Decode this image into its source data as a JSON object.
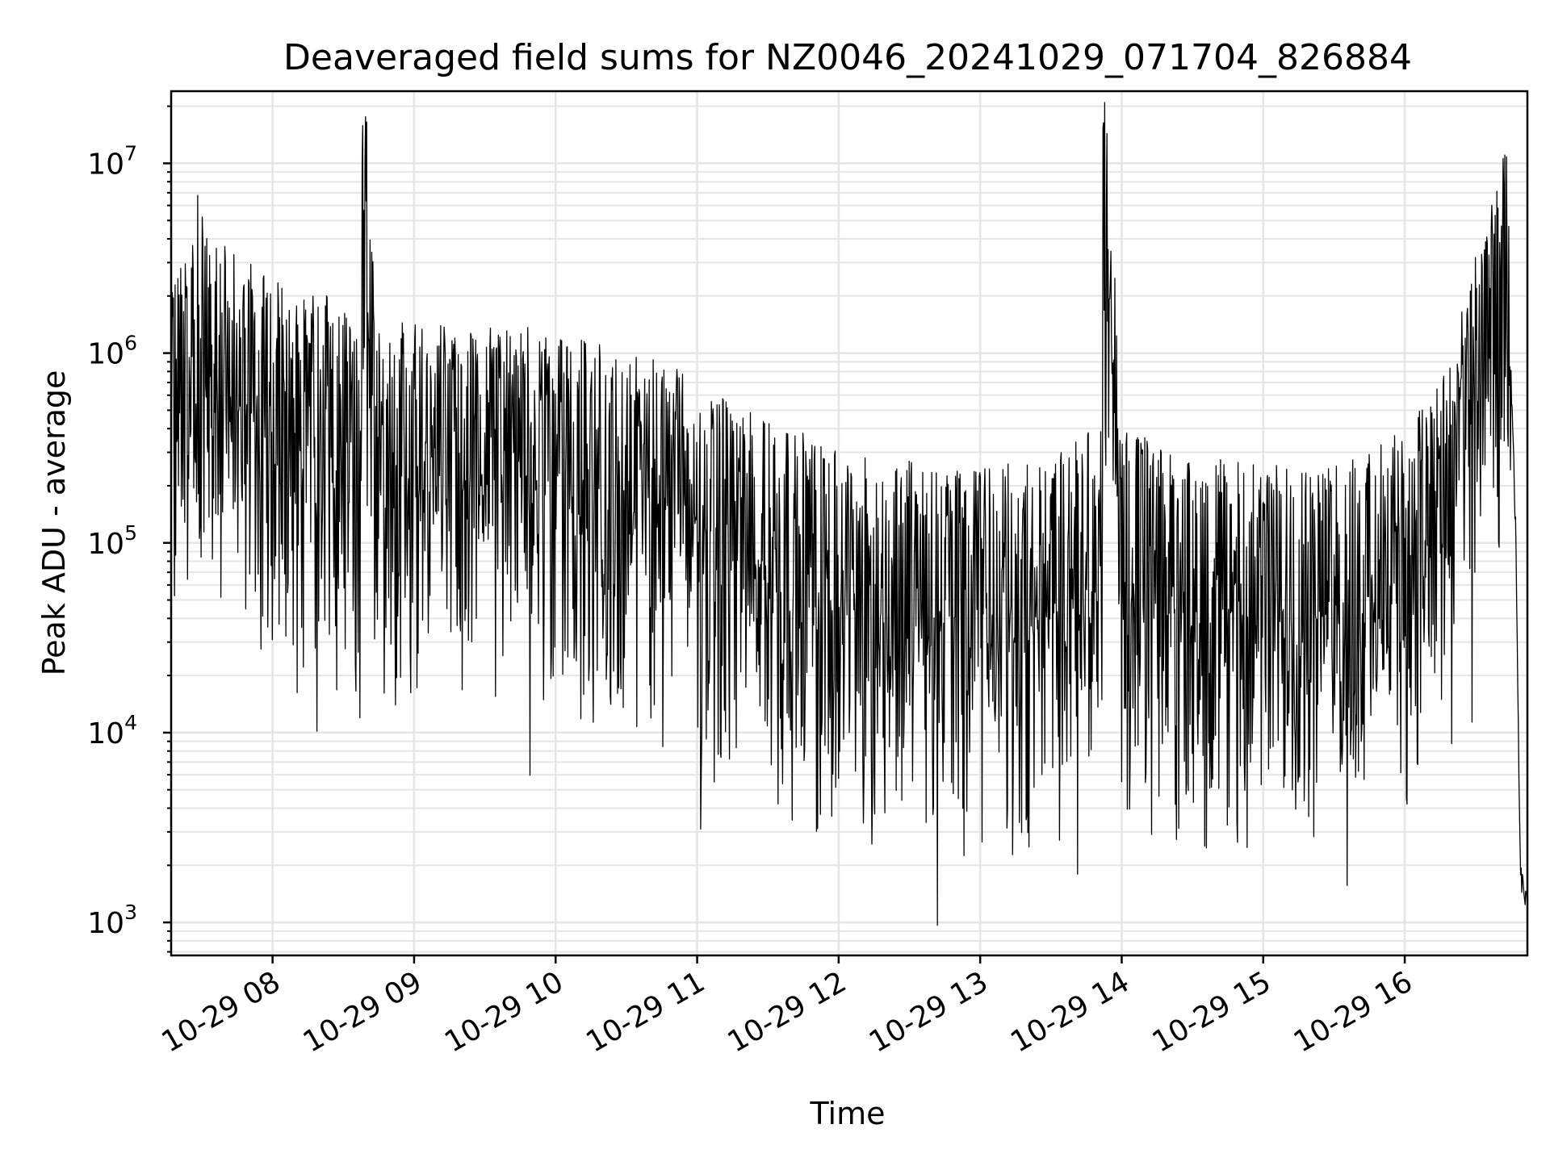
{
  "chart_data": {
    "type": "line",
    "title": "Deaveraged field sums for NZ0046_20241029_071704_826884",
    "xlabel": "Time",
    "ylabel": "Peak ADU - average",
    "y_scale": "log",
    "ylim": [
      670,
      24000000
    ],
    "xlim": [
      "2024-10-29 07:17",
      "2024-10-29 16:52"
    ],
    "grid": true,
    "grid_minor": true,
    "line_color": "#000000",
    "grid_color": "#e5e5e5",
    "x_ticks": [
      {
        "time": "2024-10-29 08:00",
        "label": "10-29 08"
      },
      {
        "time": "2024-10-29 09:00",
        "label": "10-29 09"
      },
      {
        "time": "2024-10-29 10:00",
        "label": "10-29 10"
      },
      {
        "time": "2024-10-29 11:00",
        "label": "10-29 11"
      },
      {
        "time": "2024-10-29 12:00",
        "label": "10-29 12"
      },
      {
        "time": "2024-10-29 13:00",
        "label": "10-29 13"
      },
      {
        "time": "2024-10-29 14:00",
        "label": "10-29 14"
      },
      {
        "time": "2024-10-29 15:00",
        "label": "10-29 15"
      },
      {
        "time": "2024-10-29 16:00",
        "label": "10-29 16"
      }
    ],
    "y_ticks": [
      {
        "value": 1000,
        "base": "10",
        "exp": "3"
      },
      {
        "value": 10000,
        "base": "10",
        "exp": "4"
      },
      {
        "value": 100000,
        "base": "10",
        "exp": "5"
      },
      {
        "value": 1000000,
        "base": "10",
        "exp": "6"
      },
      {
        "value": 10000000,
        "base": "10",
        "exp": "7"
      }
    ],
    "series": [
      {
        "x": [
          "2024-10-29 07:17",
          "2024-10-29 07:20",
          "2024-10-29 07:24",
          "2024-10-29 07:30",
          "2024-10-29 07:40",
          "2024-10-29 07:50",
          "2024-10-29 08:00",
          "2024-10-29 08:10",
          "2024-10-29 08:20",
          "2024-10-29 08:30",
          "2024-10-29 08:38",
          "2024-10-29 08:38",
          "2024-10-29 08:45",
          "2024-10-29 09:00",
          "2024-10-29 09:15",
          "2024-10-29 09:30",
          "2024-10-29 09:45",
          "2024-10-29 10:00",
          "2024-10-29 10:15",
          "2024-10-29 10:30",
          "2024-10-29 10:45",
          "2024-10-29 11:00",
          "2024-10-29 11:15",
          "2024-10-29 11:30",
          "2024-10-29 11:45",
          "2024-10-29 12:00",
          "2024-10-29 12:15",
          "2024-10-29 12:30",
          "2024-10-29 12:45",
          "2024-10-29 13:00",
          "2024-10-29 13:15",
          "2024-10-29 13:30",
          "2024-10-29 13:45",
          "2024-10-29 13:52",
          "2024-10-29 13:52",
          "2024-10-29 14:00",
          "2024-10-29 14:15",
          "2024-10-29 14:30",
          "2024-10-29 14:45",
          "2024-10-29 15:00",
          "2024-10-29 15:15",
          "2024-10-29 15:30",
          "2024-10-29 15:45",
          "2024-10-29 16:00",
          "2024-10-29 16:10",
          "2024-10-29 16:20",
          "2024-10-29 16:30",
          "2024-10-29 16:36",
          "2024-10-29 16:40",
          "2024-10-29 16:43",
          "2024-10-29 16:45",
          "2024-10-29 16:47",
          "2024-10-29 16:49",
          "2024-10-29 16:52"
        ],
        "y": [
          480000,
          600000,
          1200000,
          1800000,
          900000,
          700000,
          600000,
          450000,
          500000,
          420000,
          300000,
          10200000,
          380000,
          350000,
          330000,
          330000,
          320000,
          340000,
          300000,
          250000,
          230000,
          170000,
          130000,
          110000,
          90000,
          70000,
          65000,
          65000,
          65000,
          60000,
          62000,
          65000,
          90000,
          110000,
          15500000,
          110000,
          75000,
          65000,
          65000,
          60000,
          65000,
          65000,
          70000,
          100000,
          140000,
          230000,
          800000,
          1400000,
          1800000,
          3500000,
          800000,
          120000,
          1800,
          1200
        ]
      }
    ]
  }
}
